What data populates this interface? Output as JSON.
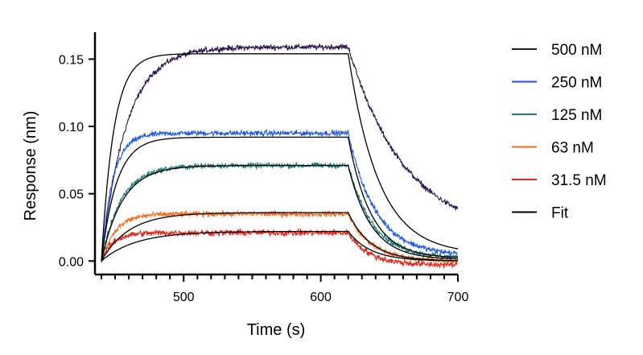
{
  "chart_data": {
    "type": "line",
    "title": "",
    "xlabel": "Time (s)",
    "ylabel": "Response (nm)",
    "xlim": [
      440,
      700
    ],
    "ylim": [
      -0.01,
      0.17
    ],
    "x_ticks": [
      500,
      600,
      700
    ],
    "x_tick_labels": [
      "500",
      "600",
      "700"
    ],
    "x_minor_step": 10,
    "y_ticks": [
      0.0,
      0.05,
      0.1,
      0.15
    ],
    "y_tick_labels": [
      "0.00",
      "0.05",
      "0.10",
      "0.15"
    ],
    "grid": false,
    "legend_position": "right",
    "association_start": 440,
    "dissociation_start": 620,
    "x_end": 700,
    "series": [
      {
        "name": "500 nM",
        "color": "#2e1653",
        "plateau": 0.159,
        "end": 0.018,
        "ka_rate": 0.055,
        "kd_rate": 0.024,
        "noise": 0.003
      },
      {
        "name": "250 nM",
        "color": "#1b57e6",
        "plateau": 0.095,
        "end": 0.004,
        "ka_rate": 0.12,
        "kd_rate": 0.05,
        "noise": 0.003
      },
      {
        "name": "125 nM",
        "color": "#1e7a78",
        "plateau": 0.071,
        "end": 0.002,
        "ka_rate": 0.07,
        "kd_rate": 0.055,
        "noise": 0.003
      },
      {
        "name": "63 nM",
        "color": "#f26a1b",
        "plateau": 0.035,
        "end": 0.0,
        "ka_rate": 0.1,
        "kd_rate": 0.06,
        "noise": 0.003
      },
      {
        "name": "31.5 nM",
        "color": "#e5241c",
        "plateau": 0.021,
        "end": -0.003,
        "ka_rate": 0.12,
        "kd_rate": 0.065,
        "noise": 0.0035
      }
    ],
    "fit": [
      {
        "plateau": 0.154,
        "ka_rate": 0.11,
        "kd_rate": 0.045,
        "end": 0.005
      },
      {
        "plateau": 0.092,
        "ka_rate": 0.09,
        "kd_rate": 0.06,
        "end": 0.002
      },
      {
        "plateau": 0.071,
        "ka_rate": 0.065,
        "kd_rate": 0.06,
        "end": 0.001
      },
      {
        "plateau": 0.036,
        "ka_rate": 0.05,
        "kd_rate": 0.06,
        "end": 0.0
      },
      {
        "plateau": 0.022,
        "ka_rate": 0.04,
        "kd_rate": 0.06,
        "end": 0.0
      }
    ],
    "legend": [
      {
        "label": "500 nM",
        "color": "#2e1653"
      },
      {
        "label": "250 nM",
        "color": "#1b57e6"
      },
      {
        "label": "125 nM",
        "color": "#1e7a78"
      },
      {
        "label": "63 nM",
        "color": "#f26a1b"
      },
      {
        "label": "31.5 nM",
        "color": "#e5241c"
      },
      {
        "label": "Fit",
        "color": "#000000"
      }
    ]
  }
}
